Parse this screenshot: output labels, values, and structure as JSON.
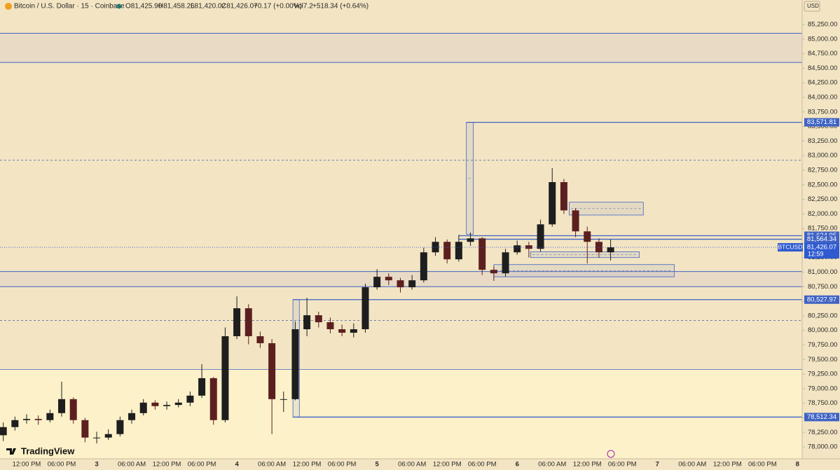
{
  "header": {
    "title": "Bitcoin / U.S. Dollar · 15 · Coinbase",
    "open": "O81,425.90",
    "high": "H81,458.26",
    "low": "L81,420.02",
    "close": "C81,426.07",
    "change": "+0.17 (+0.00%)",
    "volume": "Vol7.2",
    "volume_change": "+518.34 (+0.64%)",
    "currency": "USD",
    "brand": "TradingView"
  },
  "chart_data": {
    "type": "candlestick",
    "x": [
      -4,
      -2,
      0,
      2,
      4,
      6,
      8,
      10,
      12,
      14,
      16,
      18,
      20,
      22,
      24,
      26,
      28,
      30,
      32,
      34,
      36,
      38,
      40,
      42,
      44,
      46,
      48,
      50,
      52,
      54,
      56,
      58,
      60,
      62,
      64,
      66,
      68,
      70,
      72,
      74,
      76,
      78,
      80,
      82,
      84,
      86,
      88,
      90,
      92,
      94,
      96,
      98,
      100
    ],
    "open": [
      78200,
      78340,
      78460,
      78480,
      78460,
      78580,
      78820,
      78460,
      78160,
      78160,
      78220,
      78460,
      78580,
      78760,
      78700,
      78720,
      78760,
      78880,
      79180,
      78460,
      79900,
      80380,
      79900,
      79780,
      78820,
      78820,
      80020,
      80260,
      80140,
      80020,
      79960,
      80020,
      80740,
      80920,
      80860,
      80740,
      80860,
      81340,
      81520,
      81220,
      81520,
      81580,
      81040,
      80980,
      81340,
      81460,
      81400,
      81820,
      82545,
      82060,
      81700,
      81520,
      81340
    ],
    "high": [
      78420,
      78520,
      78560,
      78540,
      78640,
      79120,
      78850,
      78500,
      78260,
      78300,
      78520,
      78640,
      78820,
      78800,
      78780,
      78820,
      78950,
      79420,
      79200,
      80050,
      80585,
      80450,
      79980,
      79850,
      78950,
      80150,
      80560,
      80320,
      80220,
      80100,
      80120,
      80800,
      81050,
      80980,
      80900,
      80950,
      81420,
      81600,
      81560,
      81640,
      81680,
      81600,
      81100,
      81400,
      81540,
      81520,
      81900,
      82785,
      82600,
      82100,
      81780,
      81580,
      81560
    ],
    "low": [
      78100,
      78280,
      78400,
      78380,
      78420,
      78520,
      78400,
      78080,
      78060,
      78120,
      78180,
      78400,
      78540,
      78640,
      78640,
      78680,
      78700,
      78840,
      78380,
      78420,
      79850,
      79760,
      79700,
      78220,
      78600,
      78800,
      79900,
      80050,
      79950,
      79900,
      79880,
      79960,
      80700,
      80780,
      80650,
      80700,
      80820,
      81280,
      81150,
      81180,
      81450,
      80950,
      80850,
      80920,
      81300,
      81250,
      81350,
      81780,
      82000,
      81600,
      81150,
      81250,
      81200
    ],
    "close": [
      78340,
      78460,
      78480,
      78460,
      78580,
      78820,
      78460,
      78160,
      78160,
      78220,
      78460,
      78580,
      78760,
      78700,
      78720,
      78760,
      78880,
      79180,
      78460,
      79900,
      80380,
      79900,
      79780,
      78820,
      78820,
      80020,
      80260,
      80140,
      80020,
      79960,
      80020,
      80740,
      80920,
      80860,
      80740,
      80860,
      81340,
      81520,
      81220,
      81520,
      81580,
      81040,
      80980,
      81340,
      81460,
      81400,
      81820,
      82545,
      82060,
      81700,
      81520,
      81340,
      81426.07
    ],
    "up_color": "#1e1e1e",
    "down_color": "#5c1f1f",
    "xlim": [
      -4.56,
      132.8
    ],
    "ylim": [
      77796,
      85671
    ],
    "xticks": [
      {
        "value": 0,
        "label": "12:00 PM"
      },
      {
        "value": 6,
        "label": "06:00 PM"
      },
      {
        "value": 12,
        "label": "3"
      },
      {
        "value": 18,
        "label": "06:00 AM"
      },
      {
        "value": 24,
        "label": "12:00 PM"
      },
      {
        "value": 30,
        "label": "06:00 PM"
      },
      {
        "value": 36,
        "label": "4"
      },
      {
        "value": 42,
        "label": "06:00 AM"
      },
      {
        "value": 48,
        "label": "12:00 PM"
      },
      {
        "value": 54,
        "label": "06:00 PM"
      },
      {
        "value": 60,
        "label": "5"
      },
      {
        "value": 66,
        "label": "06:00 AM"
      },
      {
        "value": 72,
        "label": "12:00 PM"
      },
      {
        "value": 78,
        "label": "06:00 PM"
      },
      {
        "value": 84,
        "label": "6"
      },
      {
        "value": 90,
        "label": "06:00 AM"
      },
      {
        "value": 96,
        "label": "12:00 PM"
      },
      {
        "value": 102,
        "label": "06:00 PM"
      },
      {
        "value": 108,
        "label": "7"
      },
      {
        "value": 114,
        "label": "06:00 AM"
      },
      {
        "value": 120,
        "label": "12:00 PM"
      },
      {
        "value": 126,
        "label": "06:00 PM"
      },
      {
        "value": 132,
        "label": "8"
      }
    ],
    "yticks": [
      {
        "value": 78000,
        "label": "78,000.00"
      },
      {
        "value": 78250,
        "label": "78,250.00"
      },
      {
        "value": 78500,
        "label": "78,500.00"
      },
      {
        "value": 78750,
        "label": "78,750.00"
      },
      {
        "value": 79000,
        "label": "79,000.00"
      },
      {
        "value": 79250,
        "label": "79,250.00"
      },
      {
        "value": 79500,
        "label": "79,500.00"
      },
      {
        "value": 79750,
        "label": "79,750.00"
      },
      {
        "value": 80000,
        "label": "80,000.00"
      },
      {
        "value": 80250,
        "label": "80,250.00"
      },
      {
        "value": 80500,
        "label": "80,500.00"
      },
      {
        "value": 80750,
        "label": "80,750.00"
      },
      {
        "value": 81000,
        "label": "81,000.00"
      },
      {
        "value": 81250,
        "label": "81,250.00"
      },
      {
        "value": 81500,
        "label": "81,500.00"
      },
      {
        "value": 81750,
        "label": "81,750.00"
      },
      {
        "value": 82000,
        "label": "82,000.00"
      },
      {
        "value": 82250,
        "label": "82,250.00"
      },
      {
        "value": 82500,
        "label": "82,500.00"
      },
      {
        "value": 82750,
        "label": "82,750.00"
      },
      {
        "value": 83000,
        "label": "83,000.00"
      },
      {
        "value": 83250,
        "label": "83,250.00"
      },
      {
        "value": 83500,
        "label": "83,500.00"
      },
      {
        "value": 83750,
        "label": "83,750.00"
      },
      {
        "value": 84000,
        "label": "84,000.00"
      },
      {
        "value": 84250,
        "label": "84,250.00"
      },
      {
        "value": 84500,
        "label": "84,500.00"
      },
      {
        "value": 84750,
        "label": "84,750.00"
      },
      {
        "value": 85000,
        "label": "85,000.00"
      },
      {
        "value": 85250,
        "label": "85,250.00"
      }
    ],
    "zones": [
      {
        "low": 77796,
        "high": 79330,
        "color": "#fcf1c9"
      },
      {
        "low": 84600,
        "high": 85100,
        "color": "#e8dac5"
      },
      {
        "low": 80750,
        "high": 81010,
        "color": "#e8dac5"
      }
    ],
    "dashed_lines": [
      82920,
      80170
    ],
    "boxes": [
      {
        "x0": 75.3,
        "x1": 76.5,
        "low": 81650,
        "high": 83571.81
      },
      {
        "x0": 45.6,
        "x1": 46.7,
        "low": 78512.34,
        "high": 80527.97
      },
      {
        "x0": 92.9,
        "x1": 105.6,
        "low": 81980,
        "high": 82200
      },
      {
        "x0": 86.3,
        "x1": 104.9,
        "low": 81250,
        "high": 81350
      },
      {
        "x0": 80,
        "x1": 110.9,
        "low": 80920,
        "high": 81130
      }
    ],
    "levels": [
      {
        "value": 83571.81,
        "label": "83,571.81",
        "x_start": 75.3
      },
      {
        "value": 81624.95,
        "label": "81,624.95",
        "x_start": 74
      },
      {
        "value": 81564.34,
        "label": "81,564.34",
        "x_start": 74
      },
      {
        "value": 80527.97,
        "label": "80,527.97",
        "x_start": 45.6
      },
      {
        "value": 78512.34,
        "label": "78,512.34",
        "x_start": 45.6
      }
    ],
    "level_color": "#3f63c4",
    "last_price": {
      "symbol": "BTCUSD",
      "value": 81426.07,
      "label": "81,426.07",
      "countdown": "12:59",
      "color": "#2f5bd0"
    }
  }
}
